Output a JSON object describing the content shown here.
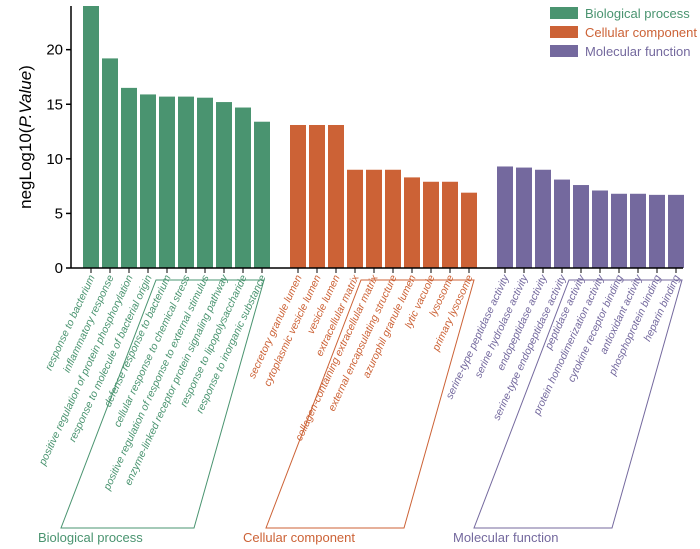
{
  "chart_data": {
    "type": "bar",
    "ylabel": "negLog10(",
    "ylabel_italic": "P.Value",
    "ylabel_close": ")",
    "ylim": [
      0,
      24
    ],
    "yticks": [
      0,
      5,
      10,
      15,
      20
    ],
    "legend_position": "top-right",
    "series": [
      {
        "name": "Biological process",
        "color": "#4a9470",
        "categories": [
          "response to bacterium",
          "inflammatory response",
          "positive regulation of protein phosphorylation",
          "response to molecule of bacterial origin",
          "defense response to bacterium",
          "cellular response to chemical stress",
          "positive regulation of response to external stimulus",
          "enzyme-linked receptor protein signaling pathway",
          "response to lipopolysaccharide",
          "response to inorganic substance"
        ],
        "values": [
          24.0,
          19.2,
          16.5,
          15.9,
          15.7,
          15.7,
          15.6,
          15.2,
          14.7,
          13.4
        ]
      },
      {
        "name": "Cellular component",
        "color": "#cc6236",
        "categories": [
          "secretory granule lumen",
          "cytoplasmic vesicle lumen",
          "vesicle lumen",
          "extracellular matrix",
          "collagen-containing extracellular matrix",
          "external encapsulating structure",
          "azurophil granule lumen",
          "lytic vacuole",
          "lysosome",
          "primary lysosome"
        ],
        "values": [
          13.1,
          13.1,
          13.1,
          9.0,
          9.0,
          9.0,
          8.3,
          7.9,
          7.9,
          6.9
        ]
      },
      {
        "name": "Molecular function",
        "color": "#74699e",
        "categories": [
          "serine-type peptidase activity",
          "serine hydrolase activity",
          "endopeptidase activity",
          "serine-type endopeptidase activity",
          "peptidase activity",
          "protein homodimerization activity",
          "cytokine receptor binding",
          "antioxidant activity",
          "phosphoprotein binding",
          "heparin binding"
        ],
        "values": [
          9.3,
          9.2,
          9.0,
          8.1,
          7.6,
          7.1,
          6.8,
          6.8,
          6.7,
          6.7
        ]
      }
    ]
  }
}
